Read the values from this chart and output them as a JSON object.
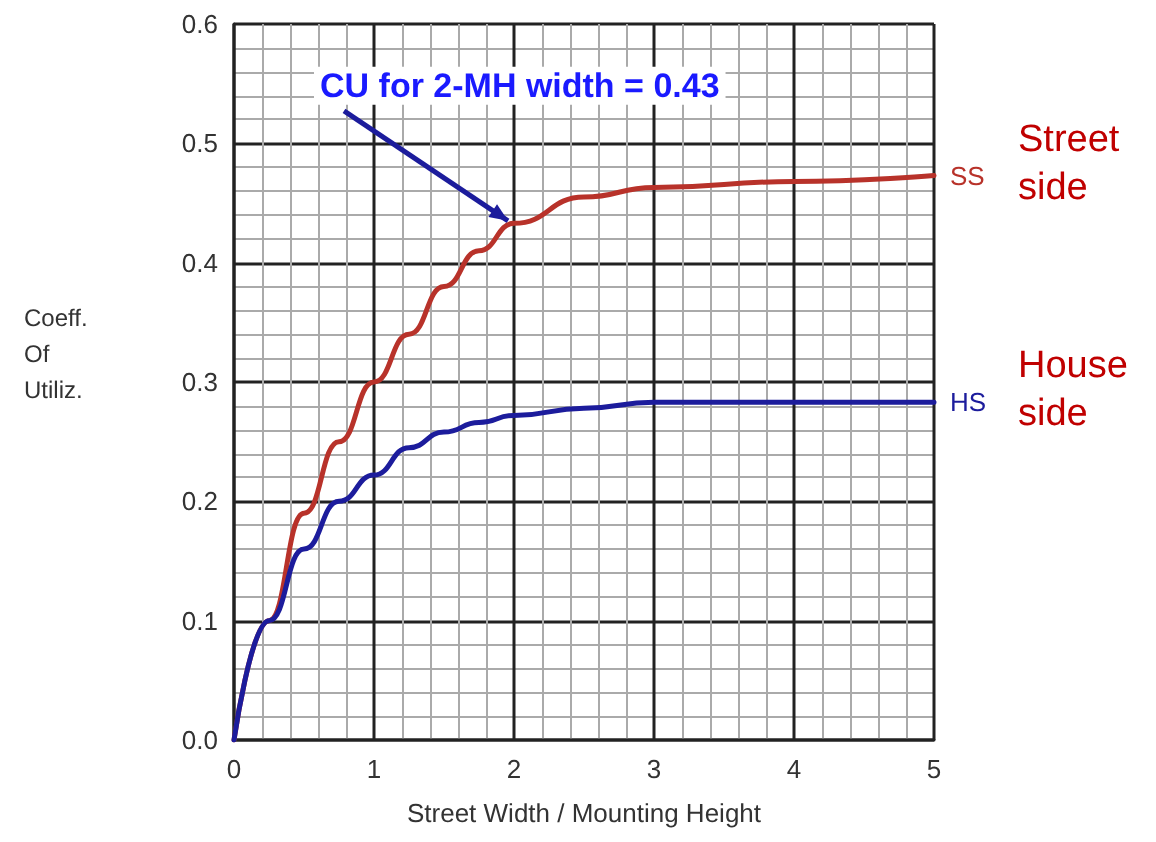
{
  "chart_data": {
    "type": "line",
    "xlabel": "Street Width / Mounting Height",
    "ylabel": "Coeff.\nOf\nUtiliz.",
    "xlim": [
      0,
      5
    ],
    "xticks": [
      0,
      1,
      2,
      3,
      4,
      5
    ],
    "ylim": [
      0,
      0.6
    ],
    "yticks": [
      {
        "value": 0,
        "label": "0.0"
      },
      0.1,
      0.2,
      0.3,
      0.4,
      0.5,
      0.6
    ],
    "grid": true,
    "marker": "none",
    "line_style": "solid",
    "x": [
      0,
      0.25,
      0.5,
      0.75,
      1,
      1.25,
      1.5,
      1.75,
      2,
      2.5,
      3,
      4,
      5
    ],
    "series": [
      {
        "name": "SS",
        "color": "#b8322a",
        "values": [
          0,
          0.1,
          0.19,
          0.25,
          0.3,
          0.34,
          0.38,
          0.41,
          0.433,
          0.455,
          0.463,
          0.468,
          0.473
        ]
      },
      {
        "name": "HS",
        "color": "#1c1c9c",
        "values": [
          0,
          0.1,
          0.16,
          0.2,
          0.222,
          0.245,
          0.258,
          0.266,
          0.272,
          0.278,
          0.283,
          0.283,
          0.283
        ]
      }
    ],
    "annotations": [
      {
        "text": "CU for 2-MH width = 0.43",
        "x": 2,
        "y": 0.43
      },
      "Street side",
      "House side"
    ]
  }
}
